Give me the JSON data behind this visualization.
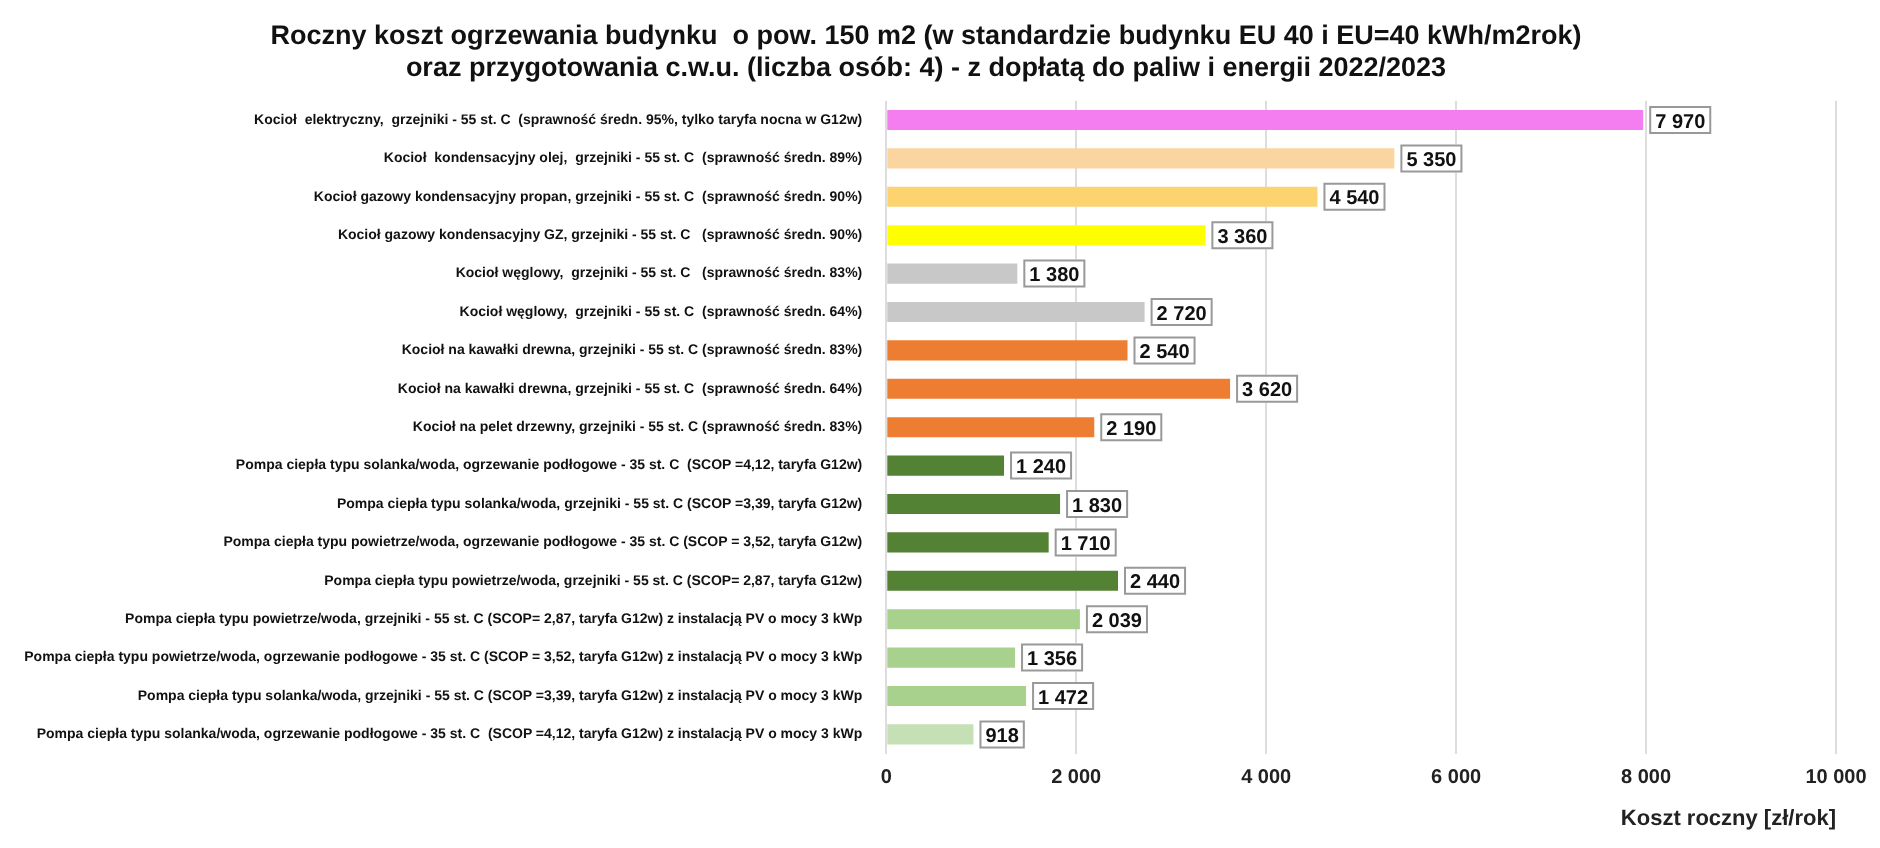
{
  "chart_data": {
    "type": "bar",
    "orientation": "horizontal",
    "title": "Roczny koszt ogrzewania budynku  o pow. 150 m2 (w standardzie budynku EU 40 i EU=40 kWh/m2rok)\noraz przygotowania c.w.u. (liczba osób: 4) - z dopłatą do paliw i energii 2022/2023",
    "xlabel": "Koszt roczny [zł/rok]",
    "categories": [
      "Kocioł  elektryczny,  grzejniki - 55 st. C  (sprawność średn. 95%, tylko taryfa nocna w G12w)",
      "Kocioł  kondensacyjny olej,  grzejniki - 55 st. C  (sprawność średn. 89%)",
      "Kocioł gazowy kondensacyjny propan, grzejniki - 55 st. C  (sprawność średn. 90%)",
      "Kocioł gazowy kondensacyjny GZ, grzejniki - 55 st. C   (sprawność średn. 90%)",
      "Kocioł węglowy,  grzejniki - 55 st. C   (sprawność średn. 83%)",
      "Kocioł węglowy,  grzejniki - 55 st. C  (sprawność średn. 64%)",
      "Kocioł na kawałki drewna, grzejniki - 55 st. C (sprawność średn. 83%)",
      "Kocioł na kawałki drewna, grzejniki - 55 st. C  (sprawność średn. 64%)",
      "Kocioł na pelet drzewny, grzejniki - 55 st. C (sprawność średn. 83%)",
      "Pompa ciepła typu solanka/woda, ogrzewanie podłogowe - 35 st. C  (SCOP =4,12, taryfa G12w)",
      "Pompa ciepła typu solanka/woda, grzejniki - 55 st. C (SCOP =3,39, taryfa G12w)",
      "Pompa ciepła typu powietrze/woda, ogrzewanie podłogowe - 35 st. C (SCOP = 3,52, taryfa G12w)",
      "Pompa ciepła typu powietrze/woda, grzejniki - 55 st. C (SCOP= 2,87, taryfa G12w)",
      "Pompa ciepła typu powietrze/woda, grzejniki - 55 st. C (SCOP= 2,87, taryfa G12w) z instalacją PV o mocy 3 kWp",
      "Pompa ciepła typu powietrze/woda, ogrzewanie podłogowe - 35 st. C (SCOP = 3,52, taryfa G12w) z instalacją PV o mocy 3 kWp",
      "Pompa ciepła typu solanka/woda, grzejniki - 55 st. C (SCOP =3,39, taryfa G12w) z instalacją PV o mocy 3 kWp",
      "Pompa ciepła typu solanka/woda, ogrzewanie podłogowe - 35 st. C  (SCOP =4,12, taryfa G12w) z instalacją PV o mocy 3 kWp"
    ],
    "values": [
      7970,
      5350,
      4540,
      3360,
      1380,
      2720,
      2540,
      3620,
      2190,
      1240,
      1830,
      1710,
      2440,
      2039,
      1356,
      1472,
      918
    ],
    "value_labels": [
      "7 970",
      "5 350",
      "4 540",
      "3 360",
      "1 380",
      "2 720",
      "2 540",
      "3 620",
      "2 190",
      "1 240",
      "1 830",
      "1 710",
      "2 440",
      "2 039",
      "1 356",
      "1 472",
      "918"
    ],
    "colors": [
      "#f47ef0",
      "#fbd5a0",
      "#fcd36e",
      "#ffff00",
      "#c8c8c8",
      "#c8c8c8",
      "#ed7d31",
      "#ed7d31",
      "#ed7d31",
      "#548235",
      "#548235",
      "#548235",
      "#548235",
      "#a9d18e",
      "#a9d18e",
      "#a9d18e",
      "#c5e0b4"
    ],
    "xlim": [
      0,
      10000
    ],
    "xticks": [
      0,
      {
        "value": 2000,
        "label": "2 000"
      },
      {
        "value": 4000,
        "label": "4 000"
      },
      {
        "value": 6000,
        "label": "6 000"
      },
      {
        "value": 8000,
        "label": "8 000"
      },
      {
        "value": 10000,
        "label": "10 000"
      }
    ],
    "grid": "x"
  }
}
